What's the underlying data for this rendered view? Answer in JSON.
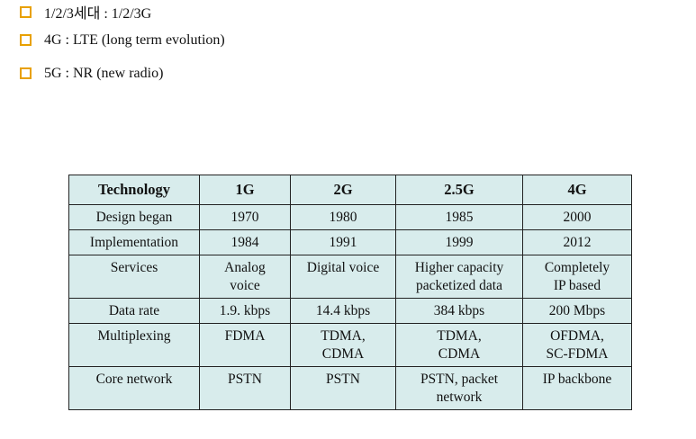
{
  "bullets": [
    {
      "text": "1/2/3세대 : 1/2/3G"
    },
    {
      "text": "4G : LTE (long term evolution)"
    },
    {
      "text": "5G : NR  (new radio)"
    }
  ],
  "table": {
    "headers": [
      "Technology",
      "1G",
      "2G",
      "2.5G",
      "4G"
    ],
    "rows": [
      [
        "Design began",
        "1970",
        "1980",
        "1985",
        "2000"
      ],
      [
        "Implementation",
        "1984",
        "1991",
        "1999",
        "2012"
      ],
      [
        "Services",
        "Analog\nvoice",
        "Digital voice",
        "Higher capacity\npacketized data",
        "Completely\nIP based"
      ],
      [
        "Data rate",
        "1.9. kbps",
        "14.4 kbps",
        "384 kbps",
        "200 Mbps"
      ],
      [
        "Multiplexing",
        "FDMA",
        "TDMA,\nCDMA",
        "TDMA,\nCDMA",
        "OFDMA,\nSC-FDMA"
      ],
      [
        "Core network",
        "PSTN",
        "PSTN",
        "PSTN, packet\nnetwork",
        "IP backbone"
      ]
    ]
  },
  "colors": {
    "table_bg": "#d8ecec",
    "bullet_accent": "#e8a000"
  }
}
